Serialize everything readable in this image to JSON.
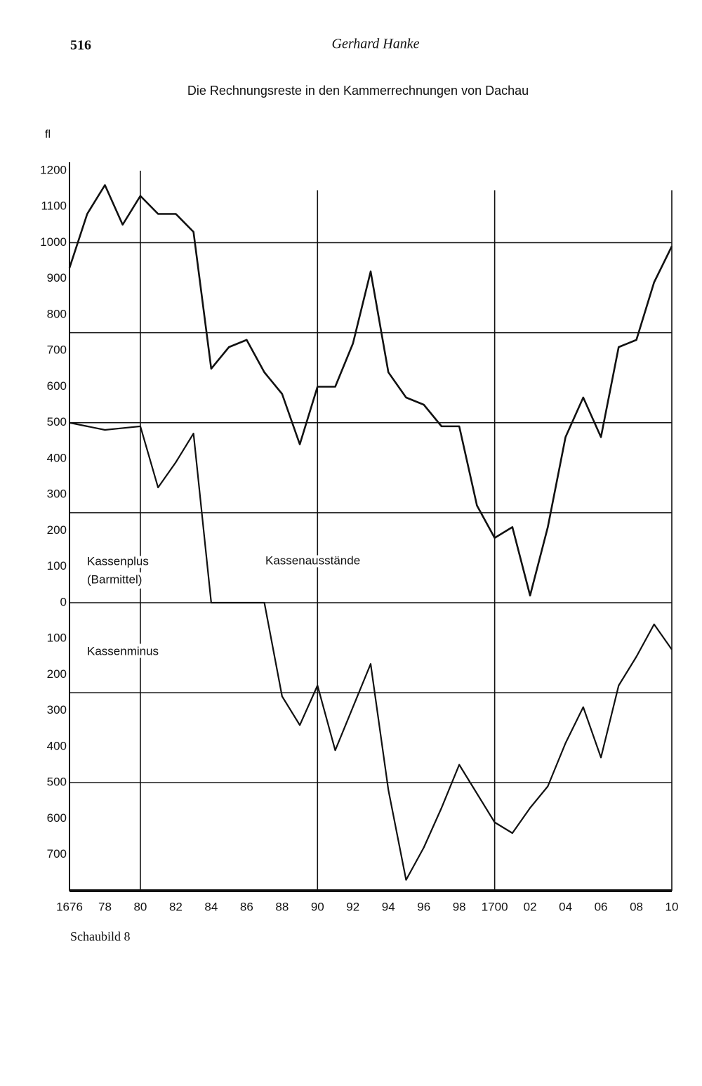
{
  "page": {
    "number": 516,
    "header": "Gerhard Hanke",
    "caption": "Schaubild 8"
  },
  "chart_data": {
    "type": "line",
    "title": "Die Rechnungsreste in den Kammerrechnungen von Dachau",
    "y_label": "fl",
    "annotations": [
      "Kassenplus",
      "(Barmittel)",
      "Kassenausstände",
      "Kassenminus"
    ],
    "x": [
      1676,
      1677,
      1678,
      1679,
      1680,
      1681,
      1682,
      1683,
      1684,
      1685,
      1686,
      1687,
      1688,
      1689,
      1690,
      1691,
      1692,
      1693,
      1694,
      1695,
      1696,
      1697,
      1698,
      1699,
      1700,
      1701,
      1702,
      1703,
      1704,
      1705,
      1706,
      1707,
      1708,
      1709,
      1710
    ],
    "series": [
      {
        "color": "#111111",
        "values": [
          930,
          1080,
          1160,
          1050,
          1130,
          1080,
          1080,
          1030,
          650,
          710,
          730,
          640,
          580,
          440,
          600,
          600,
          720,
          920,
          640,
          570,
          550,
          490,
          490,
          270,
          180,
          210,
          20,
          210,
          460,
          570,
          460,
          710,
          730,
          890,
          990
        ]
      },
      {
        "color": "#111111",
        "values": [
          500,
          490,
          480,
          485,
          490,
          320,
          390,
          470,
          0,
          0,
          0,
          0,
          -260,
          -340,
          -230,
          -410,
          -290,
          -170,
          -520,
          -770,
          -680,
          -570,
          -450,
          -530,
          -610,
          -640,
          -570,
          -510,
          -390,
          -290,
          -430,
          -230,
          -150,
          -60,
          -130
        ]
      }
    ],
    "xlim": [
      1676,
      1710
    ],
    "ylim": [
      -800,
      1200
    ],
    "xticks": [
      1676,
      {
        "value": 1678,
        "label": "78"
      },
      {
        "value": 1680,
        "label": "80"
      },
      {
        "value": 1682,
        "label": "82"
      },
      {
        "value": 1684,
        "label": "84"
      },
      {
        "value": 1686,
        "label": "86"
      },
      {
        "value": 1688,
        "label": "88"
      },
      {
        "value": 1690,
        "label": "90"
      },
      {
        "value": 1692,
        "label": "92"
      },
      {
        "value": 1694,
        "label": "94"
      },
      {
        "value": 1696,
        "label": "96"
      },
      {
        "value": 1698,
        "label": "98"
      },
      1700,
      {
        "value": 1702,
        "label": "02"
      },
      {
        "value": 1704,
        "label": "04"
      },
      {
        "value": 1706,
        "label": "06"
      },
      {
        "value": 1708,
        "label": "08"
      },
      {
        "value": 1710,
        "label": "10"
      }
    ],
    "yticks": [
      1200,
      1100,
      1000,
      900,
      800,
      700,
      600,
      500,
      400,
      300,
      200,
      100,
      0,
      {
        "value": -100,
        "label": "100"
      },
      {
        "value": -200,
        "label": "200"
      },
      {
        "value": -300,
        "label": "300"
      },
      {
        "value": -400,
        "label": "400"
      },
      {
        "value": -500,
        "label": "500"
      },
      {
        "value": -600,
        "label": "600"
      },
      {
        "value": -700,
        "label": "700"
      }
    ],
    "reference_lines": [
      1000,
      750,
      500,
      250,
      0,
      -250,
      -500
    ],
    "vertical_lines": [
      1680,
      1690,
      1700,
      1710
    ]
  }
}
